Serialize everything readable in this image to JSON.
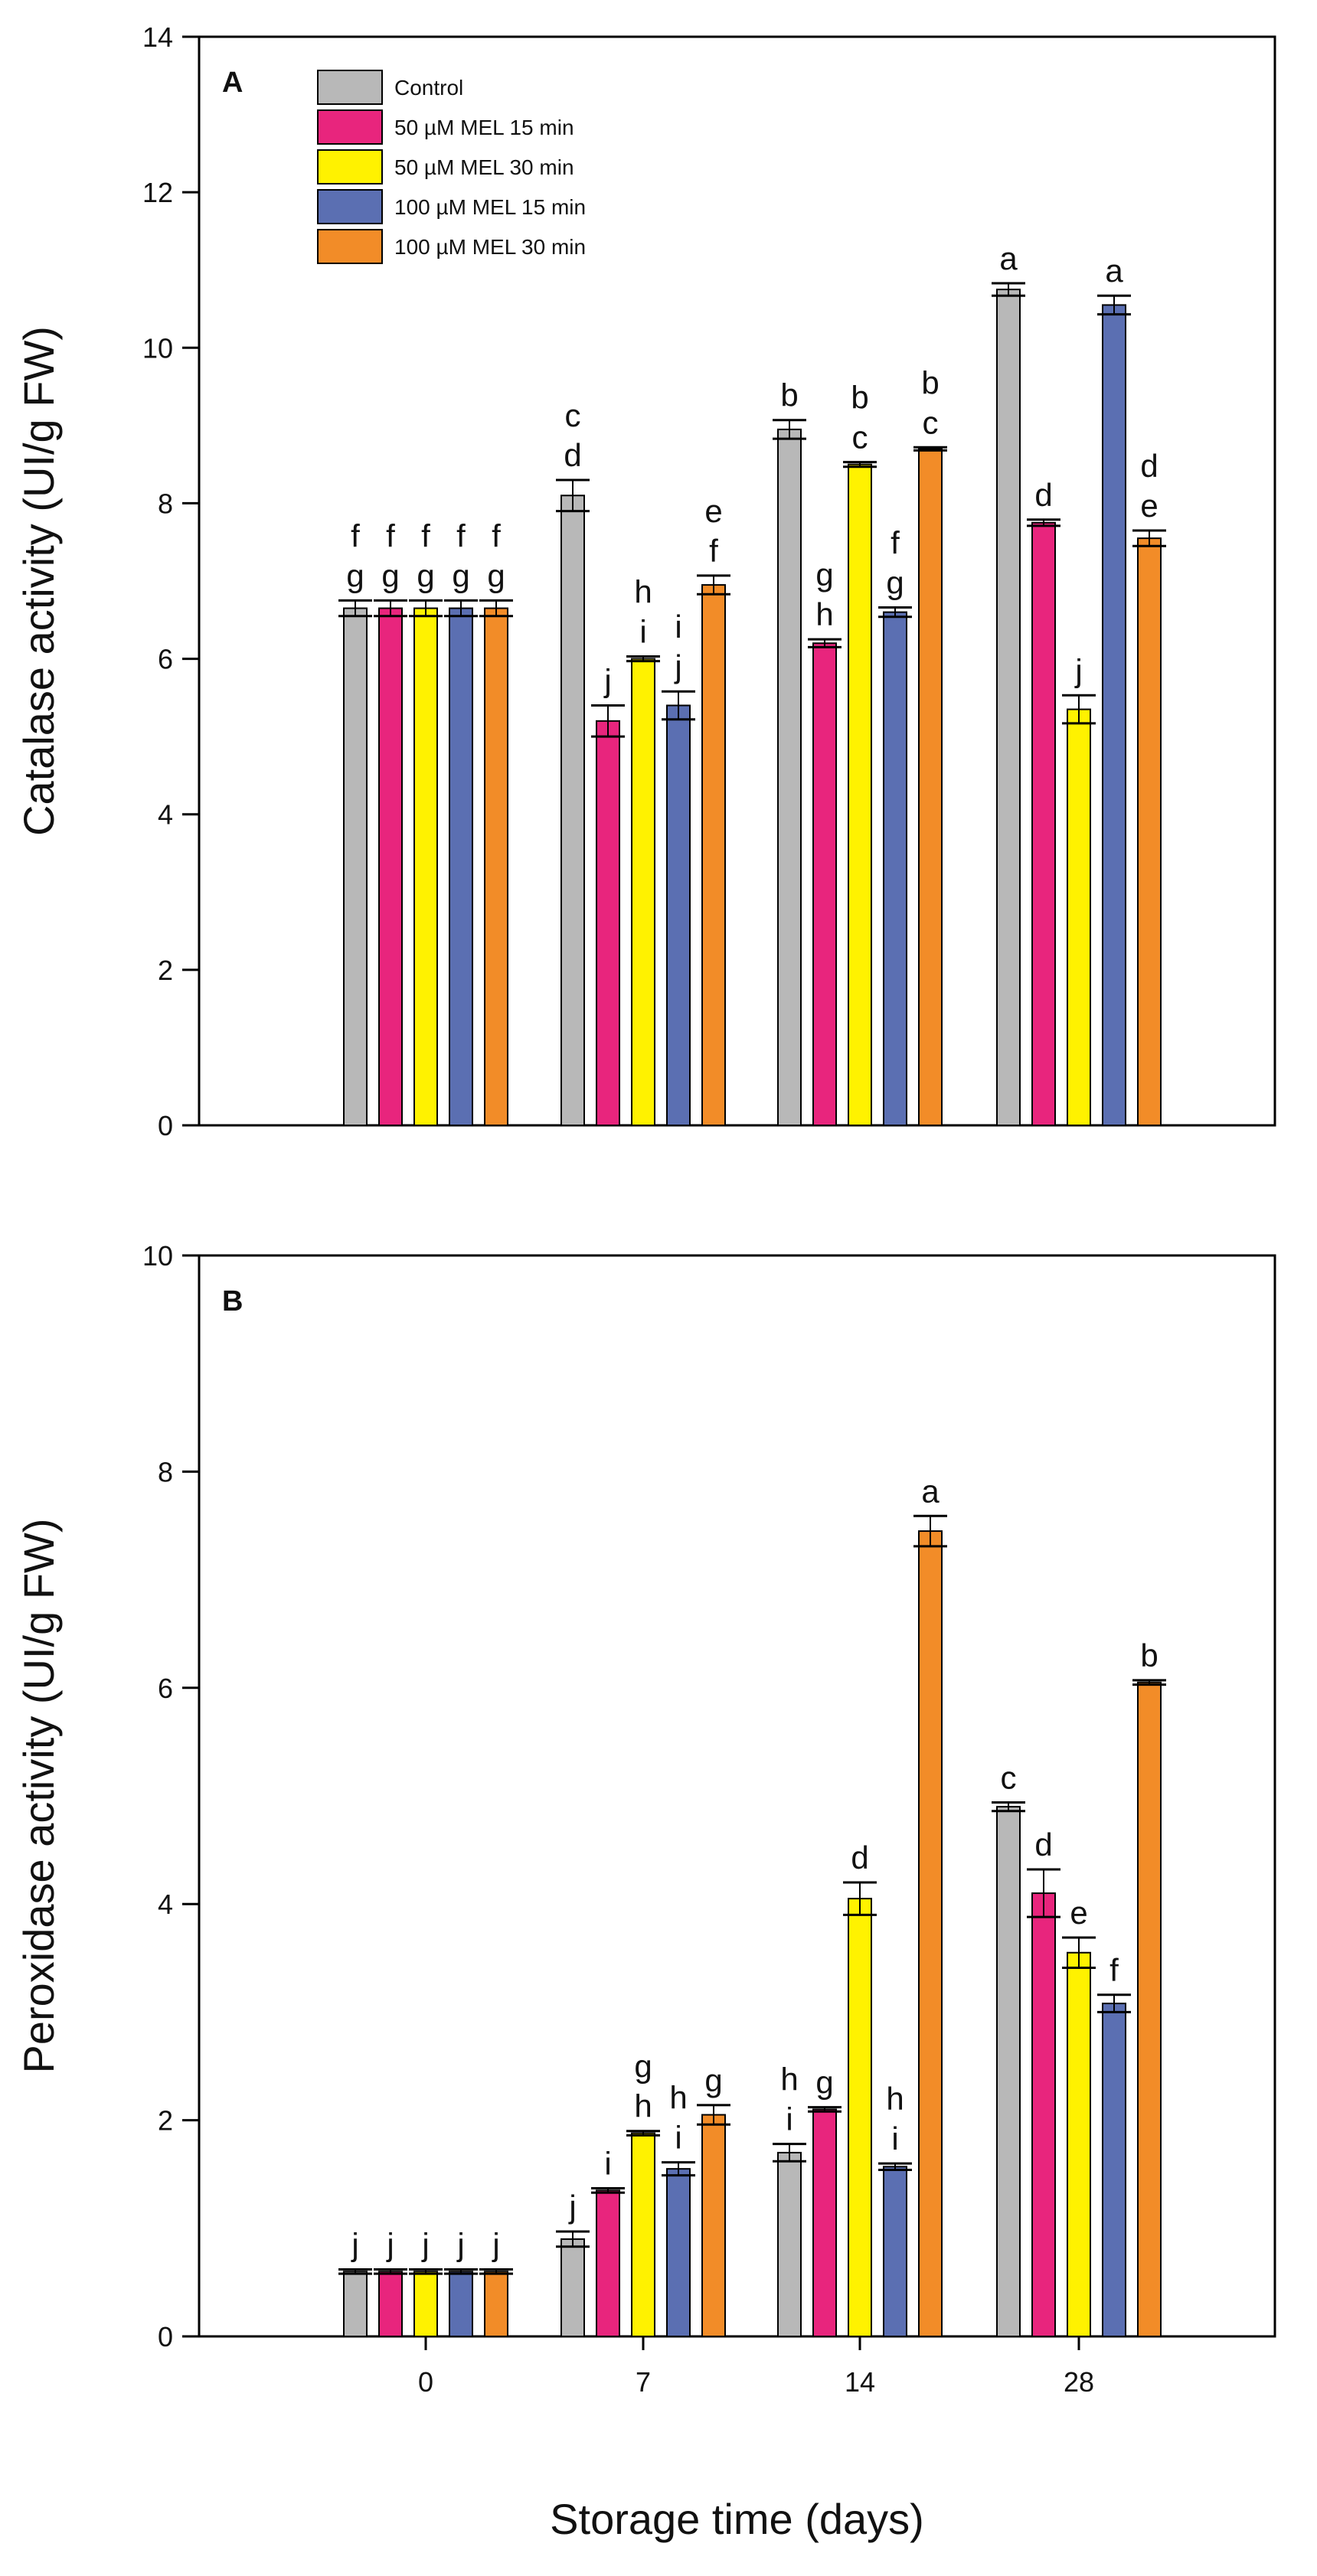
{
  "colors": {
    "Control": "#b8b8b8",
    "50 µM MEL 15 min": "#e8257d",
    "50 µM MEL 30 min": "#fff200",
    "100 µM MEL 15 min": "#5b6fb2",
    "100 µM MEL 30 min": "#f28c28"
  },
  "chart_data": [
    {
      "type": "bar",
      "panel": "A",
      "ylabel": "Catalase activity (UI/g FW)",
      "xlabel": "",
      "ylim": [
        0,
        14
      ],
      "yticks": [
        0,
        2,
        4,
        6,
        8,
        10,
        12,
        14
      ],
      "categories": [
        "0",
        "7",
        "14",
        "28"
      ],
      "legend": {
        "position": "top-left",
        "entries": [
          "Control",
          "50 µM MEL 15 min",
          "50 µM MEL 30 min",
          "100 µM MEL 15 min",
          "100 µM MEL 30 min"
        ]
      },
      "series": [
        {
          "name": "Control",
          "values": [
            6.65,
            8.1,
            8.95,
            10.75
          ],
          "errors": [
            0.1,
            0.2,
            0.12,
            0.08
          ],
          "letters": [
            "f g",
            "c d",
            "b",
            "a"
          ]
        },
        {
          "name": "50 µM MEL 15 min",
          "values": [
            6.65,
            5.2,
            6.2,
            7.75
          ],
          "errors": [
            0.1,
            0.2,
            0.05,
            0.04
          ],
          "letters": [
            "f g",
            "j",
            "g h",
            "d"
          ]
        },
        {
          "name": "50 µM MEL 30 min",
          "values": [
            6.65,
            6.0,
            8.5,
            5.35
          ],
          "errors": [
            0.1,
            0.03,
            0.03,
            0.18
          ],
          "letters": [
            "f g",
            "h i",
            "b c",
            "j"
          ]
        },
        {
          "name": "100 µM MEL 15 min",
          "values": [
            6.65,
            5.4,
            6.6,
            10.55
          ],
          "errors": [
            0.1,
            0.18,
            0.06,
            0.12
          ],
          "letters": [
            "f g",
            "i j",
            "f g",
            "a"
          ]
        },
        {
          "name": "100 µM MEL 30 min",
          "values": [
            6.65,
            6.95,
            8.7,
            7.55
          ],
          "errors": [
            0.1,
            0.12,
            0.02,
            0.1
          ],
          "letters": [
            "f g",
            "e f",
            "b c",
            "d e"
          ]
        }
      ]
    },
    {
      "type": "bar",
      "panel": "B",
      "ylabel": "Peroxidase activity (UI/g FW)",
      "xlabel": "Storage time (days)",
      "ylim": [
        0,
        10
      ],
      "yticks": [
        0,
        2,
        4,
        6,
        8,
        10
      ],
      "categories": [
        "0",
        "7",
        "14",
        "28"
      ],
      "series": [
        {
          "name": "Control",
          "values": [
            0.6,
            0.9,
            1.7,
            4.9
          ],
          "errors": [
            0.02,
            0.07,
            0.08,
            0.04
          ],
          "letters": [
            "j",
            "j",
            "h i",
            "c"
          ]
        },
        {
          "name": "50 µM MEL 15 min",
          "values": [
            0.6,
            1.35,
            2.1,
            4.1
          ],
          "errors": [
            0.02,
            0.02,
            0.02,
            0.22
          ],
          "letters": [
            "j",
            "i",
            "g",
            "d"
          ]
        },
        {
          "name": "50 µM MEL 30 min",
          "values": [
            0.6,
            1.88,
            4.05,
            3.55
          ],
          "errors": [
            0.02,
            0.02,
            0.15,
            0.14
          ],
          "letters": [
            "j",
            "g h",
            "d",
            "e"
          ]
        },
        {
          "name": "100 µM MEL 15 min",
          "values": [
            0.6,
            1.55,
            1.57,
            3.08
          ],
          "errors": [
            0.02,
            0.06,
            0.03,
            0.08
          ],
          "letters": [
            "j",
            "h i",
            "h i",
            "f"
          ]
        },
        {
          "name": "100 µM MEL 30 min",
          "values": [
            0.6,
            2.05,
            7.45,
            6.05
          ],
          "errors": [
            0.02,
            0.09,
            0.14,
            0.02
          ],
          "letters": [
            "j",
            "g",
            "a",
            "b"
          ]
        }
      ]
    }
  ]
}
